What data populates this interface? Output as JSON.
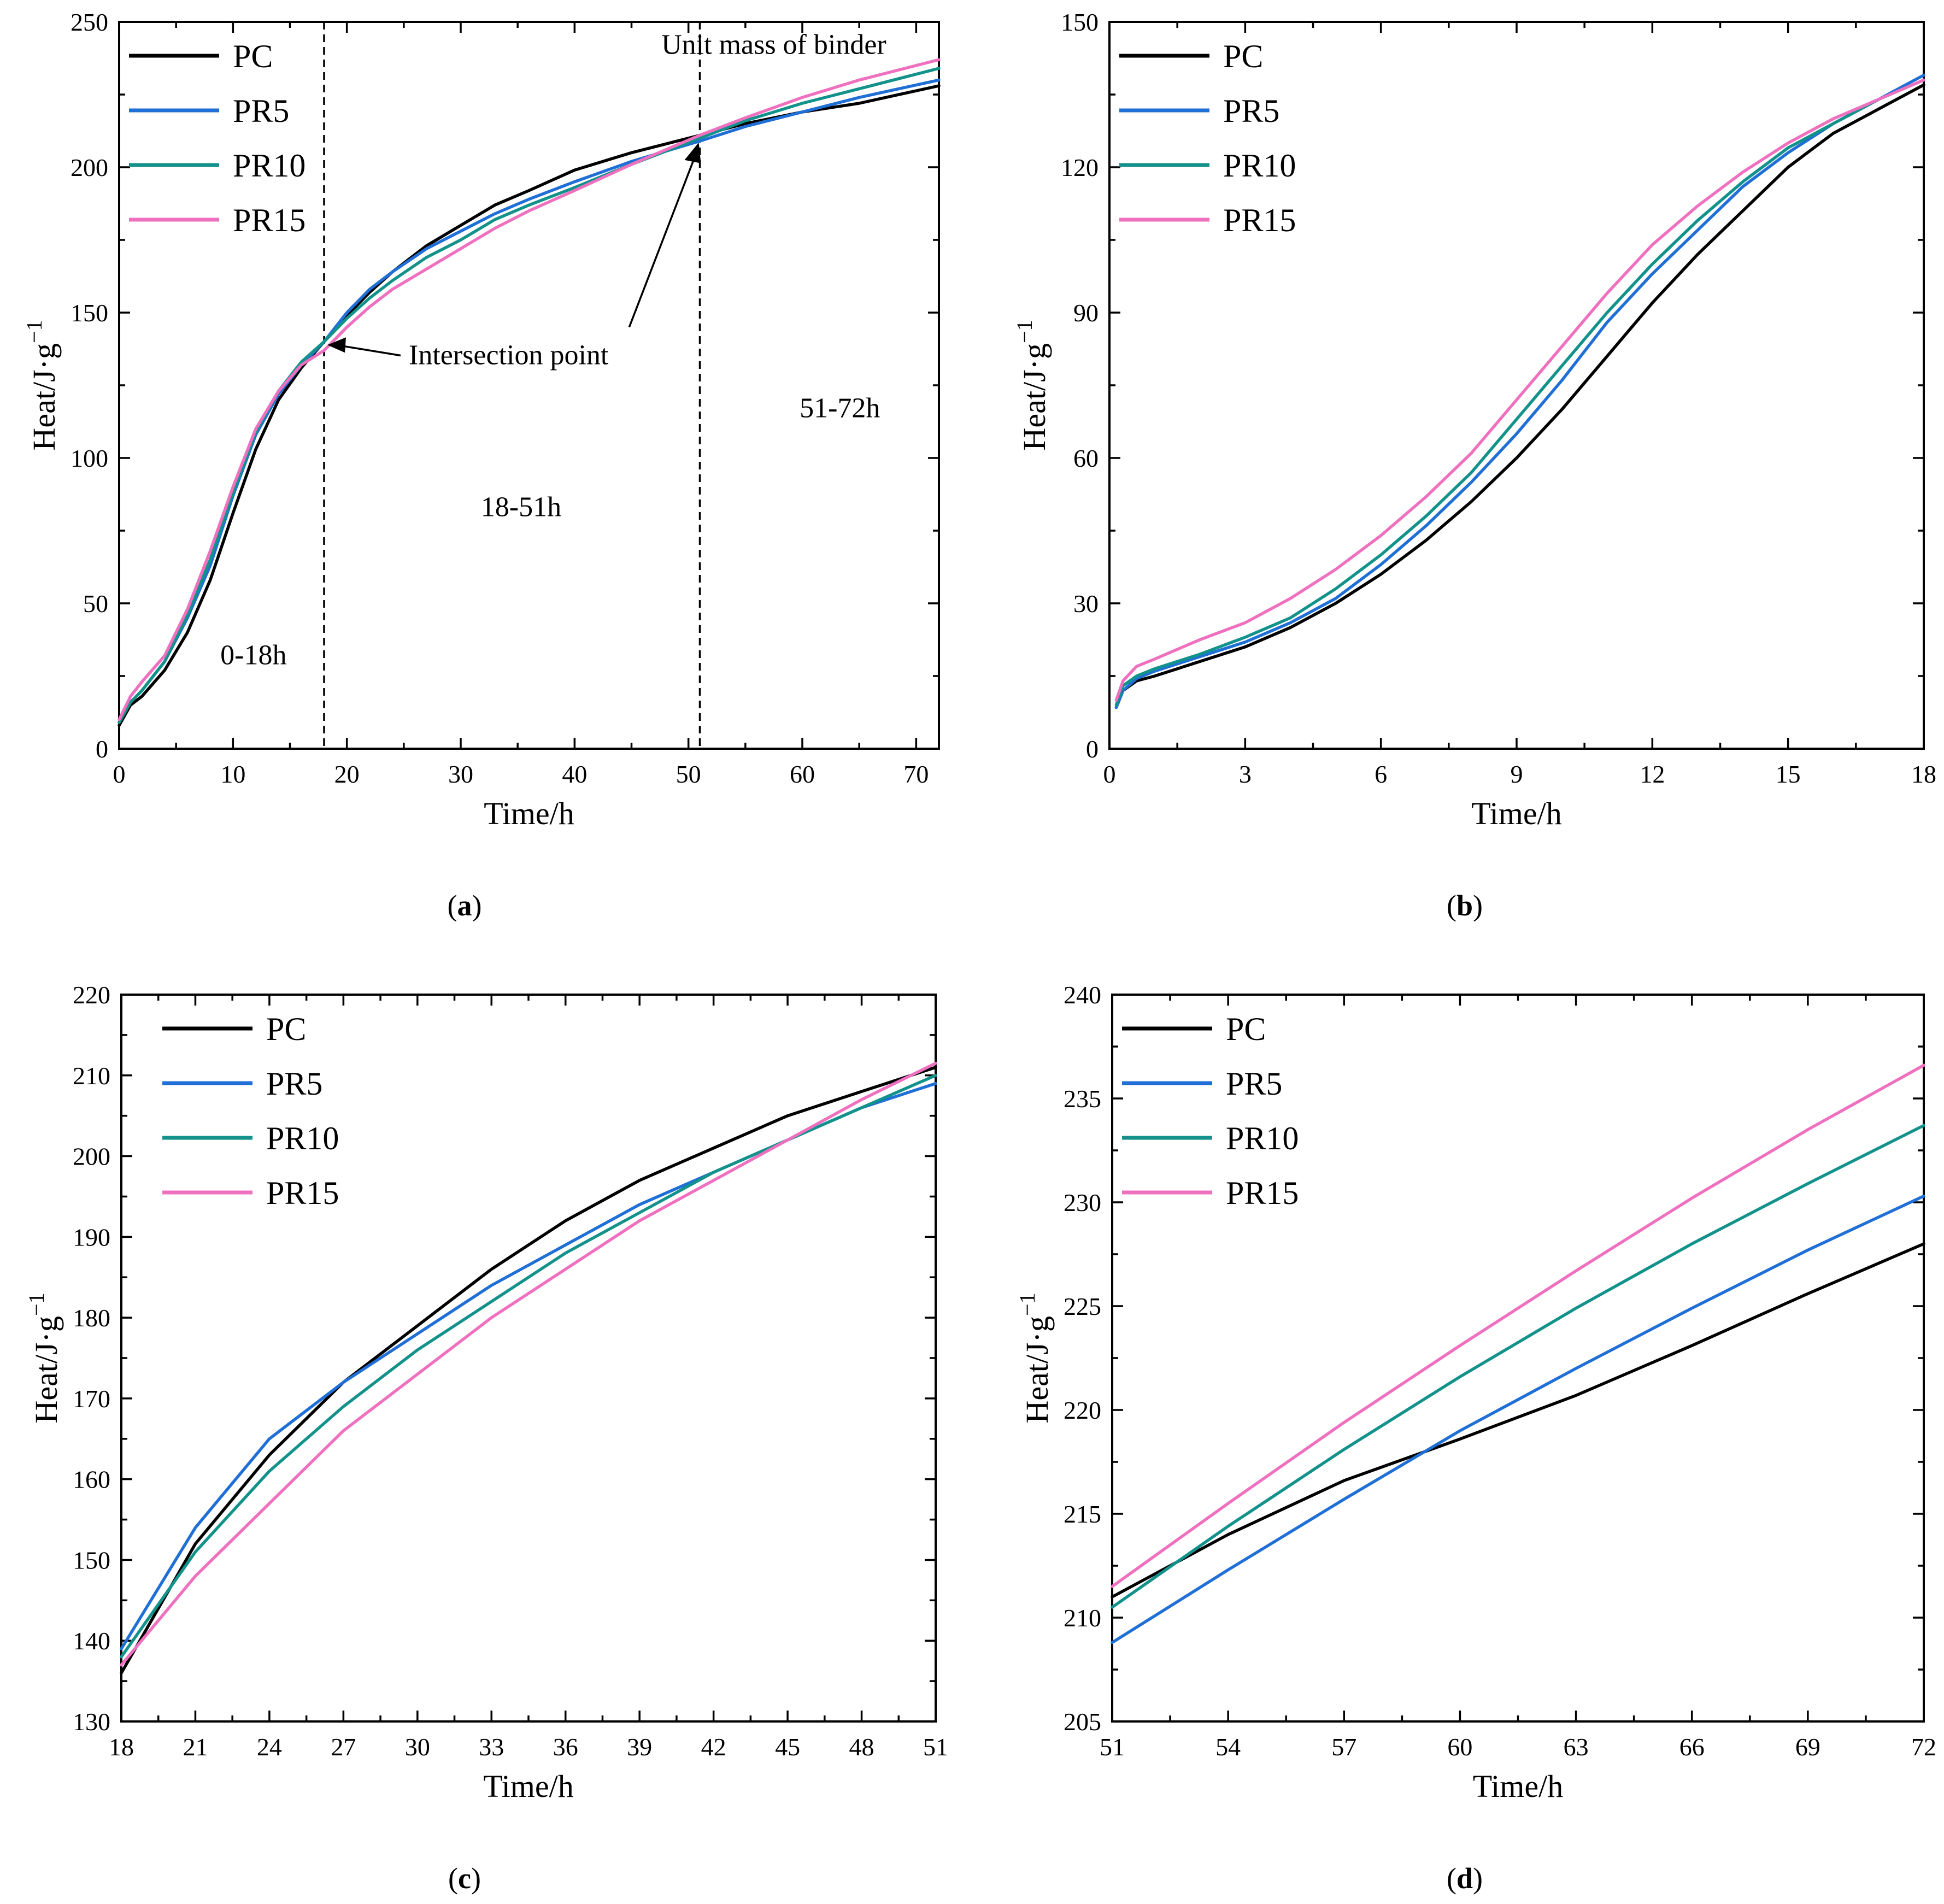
{
  "colors": {
    "PC": "#000000",
    "PR5": "#1f6fd6",
    "PR10": "#12928a",
    "PR15": "#f070c0"
  },
  "chart_data": [
    {
      "panel": "(a)",
      "panel_letter": "a",
      "type": "line",
      "xlabel": "Time/h",
      "ylabel_main": "Heat/J·g",
      "ylabel_sup": "−1",
      "xlim": [
        0,
        72
      ],
      "ylim": [
        0,
        250
      ],
      "xticks": [
        0,
        10,
        20,
        30,
        40,
        50,
        60,
        70
      ],
      "yticks": [
        0,
        50,
        100,
        150,
        200,
        250
      ],
      "legend_position": "top-left",
      "annotations": {
        "intersection": "Intersection point",
        "unit_mass": "Unit mass of binder",
        "region1": "0-18h",
        "region2": "18-51h",
        "region3": "51-72h"
      },
      "vlines": [
        18,
        51
      ],
      "series": [
        {
          "name": "PC",
          "x": [
            0,
            1,
            2,
            4,
            6,
            8,
            10,
            12,
            14,
            16,
            18,
            20,
            22,
            24,
            27,
            30,
            33,
            36,
            40,
            45,
            51,
            55,
            60,
            65,
            72
          ],
          "y": [
            8,
            15,
            18,
            27,
            40,
            58,
            81,
            103,
            120,
            131,
            140,
            149,
            157,
            164,
            173,
            180,
            187,
            192,
            199,
            205,
            211,
            215,
            219,
            222,
            228
          ]
        },
        {
          "name": "PR5",
          "x": [
            0,
            1,
            2,
            4,
            6,
            8,
            10,
            12,
            14,
            16,
            18,
            20,
            22,
            24,
            27,
            30,
            33,
            36,
            40,
            45,
            51,
            55,
            60,
            65,
            72
          ],
          "y": [
            9,
            16,
            20,
            30,
            45,
            63,
            87,
            108,
            122,
            132,
            140,
            150,
            158,
            164,
            172,
            178,
            184,
            189,
            195,
            202,
            209,
            214,
            219,
            224,
            230
          ]
        },
        {
          "name": "PR10",
          "x": [
            0,
            1,
            2,
            4,
            6,
            8,
            10,
            12,
            14,
            16,
            18,
            20,
            22,
            24,
            27,
            30,
            33,
            36,
            40,
            45,
            51,
            55,
            60,
            65,
            72
          ],
          "y": [
            9,
            16,
            20,
            30,
            46,
            65,
            88,
            109,
            123,
            133,
            140,
            148,
            155,
            161,
            169,
            175,
            182,
            187,
            193,
            201,
            210,
            216,
            222,
            227,
            234
          ]
        },
        {
          "name": "PR15",
          "x": [
            0,
            1,
            2,
            4,
            6,
            8,
            10,
            12,
            14,
            16,
            18,
            20,
            22,
            24,
            27,
            30,
            33,
            36,
            40,
            45,
            51,
            55,
            60,
            65,
            72
          ],
          "y": [
            10,
            18,
            23,
            32,
            48,
            68,
            90,
            110,
            123,
            132,
            137,
            145,
            152,
            158,
            165,
            172,
            179,
            185,
            192,
            201,
            211,
            217,
            224,
            230,
            237
          ]
        }
      ]
    },
    {
      "panel": "(b)",
      "panel_letter": "b",
      "type": "line",
      "xlabel": "Time/h",
      "ylabel_main": "Heat/J·g",
      "ylabel_sup": "−1",
      "xlim": [
        0,
        18
      ],
      "ylim": [
        0,
        150
      ],
      "xticks": [
        0,
        3,
        6,
        9,
        12,
        15,
        18
      ],
      "yticks": [
        0,
        30,
        60,
        90,
        120,
        150
      ],
      "legend_position": "top-left",
      "series": [
        {
          "name": "PC",
          "x": [
            0.15,
            0.3,
            0.6,
            1,
            1.5,
            2,
            3,
            4,
            5,
            6,
            7,
            8,
            9,
            10,
            11,
            12,
            13,
            14,
            15,
            16,
            17,
            18
          ],
          "y": [
            8.5,
            12,
            14,
            15,
            16.5,
            18,
            21,
            25,
            30,
            36,
            43,
            51,
            60,
            70,
            81,
            92,
            102,
            111,
            120,
            127,
            132,
            137
          ]
        },
        {
          "name": "PR5",
          "x": [
            0.15,
            0.3,
            0.6,
            1,
            1.5,
            2,
            3,
            4,
            5,
            6,
            7,
            8,
            9,
            10,
            11,
            12,
            13,
            14,
            15,
            16,
            17,
            18
          ],
          "y": [
            8.5,
            12,
            14.5,
            16,
            17.5,
            19,
            22,
            26,
            31,
            38,
            46,
            55,
            65,
            76,
            88,
            98,
            107,
            116,
            123,
            129,
            134,
            139
          ]
        },
        {
          "name": "PR10",
          "x": [
            0.15,
            0.3,
            0.6,
            1,
            1.5,
            2,
            3,
            4,
            5,
            6,
            7,
            8,
            9,
            10,
            11,
            12,
            13,
            14,
            15,
            16,
            17,
            18
          ],
          "y": [
            9,
            13,
            15,
            16.5,
            18,
            19.5,
            23,
            27,
            33,
            40,
            48,
            57,
            68,
            79,
            90,
            100,
            109,
            117,
            124,
            129,
            134,
            138
          ]
        },
        {
          "name": "PR15",
          "x": [
            0.15,
            0.3,
            0.6,
            1,
            1.5,
            2,
            3,
            4,
            5,
            6,
            7,
            8,
            9,
            10,
            11,
            12,
            13,
            14,
            15,
            16,
            17,
            18
          ],
          "y": [
            10,
            14,
            17,
            18.5,
            20.5,
            22.5,
            26,
            31,
            37,
            44,
            52,
            61,
            72,
            83,
            94,
            104,
            112,
            119,
            125,
            130,
            134,
            138
          ]
        }
      ]
    },
    {
      "panel": "(c)",
      "panel_letter": "c",
      "type": "line",
      "xlabel": "Time/h",
      "ylabel_main": "Heat/J·g",
      "ylabel_sup": "−1",
      "xlim": [
        18,
        51
      ],
      "ylim": [
        130,
        220
      ],
      "xticks": [
        18,
        21,
        24,
        27,
        30,
        33,
        36,
        39,
        42,
        45,
        48,
        51
      ],
      "yticks": [
        130,
        140,
        150,
        160,
        170,
        180,
        190,
        200,
        210,
        220
      ],
      "legend_position": "top-left",
      "series": [
        {
          "name": "PC",
          "x": [
            18,
            21,
            24,
            27,
            30,
            33,
            36,
            39,
            42,
            45,
            48,
            51
          ],
          "y": [
            136,
            152,
            163,
            172,
            179,
            186,
            192,
            197,
            201,
            205,
            208,
            211
          ]
        },
        {
          "name": "PR5",
          "x": [
            18,
            21,
            24,
            27,
            30,
            33,
            36,
            39,
            42,
            45,
            48,
            51
          ],
          "y": [
            139,
            154,
            165,
            172,
            178,
            184,
            189,
            194,
            198,
            202,
            206,
            209
          ]
        },
        {
          "name": "PR10",
          "x": [
            18,
            21,
            24,
            27,
            30,
            33,
            36,
            39,
            42,
            45,
            48,
            51
          ],
          "y": [
            138,
            151,
            161,
            169,
            176,
            182,
            188,
            193,
            198,
            202,
            206,
            210
          ]
        },
        {
          "name": "PR15",
          "x": [
            18,
            21,
            24,
            27,
            30,
            33,
            36,
            39,
            42,
            45,
            48,
            51
          ],
          "y": [
            137,
            148,
            157,
            166,
            173,
            180,
            186,
            192,
            197,
            202,
            207,
            211.5
          ]
        }
      ]
    },
    {
      "panel": "(d)",
      "panel_letter": "d",
      "type": "line",
      "xlabel": "Time/h",
      "ylabel_main": "Heat/J·g",
      "ylabel_sup": "−1",
      "xlim": [
        51,
        72
      ],
      "ylim": [
        205,
        240
      ],
      "xticks": [
        51,
        54,
        57,
        60,
        63,
        66,
        69,
        72
      ],
      "yticks": [
        205,
        210,
        215,
        220,
        225,
        230,
        235,
        240
      ],
      "legend_position": "top-left",
      "series": [
        {
          "name": "PC",
          "x": [
            51,
            54,
            57,
            60,
            63,
            66,
            69,
            72
          ],
          "y": [
            211,
            214,
            216.6,
            218.6,
            220.7,
            223.1,
            225.6,
            228
          ]
        },
        {
          "name": "PR5",
          "x": [
            51,
            54,
            57,
            60,
            63,
            66,
            69,
            72
          ],
          "y": [
            208.8,
            212.3,
            215.7,
            219,
            222,
            224.9,
            227.7,
            230.3
          ]
        },
        {
          "name": "PR10",
          "x": [
            51,
            54,
            57,
            60,
            63,
            66,
            69,
            72
          ],
          "y": [
            210.5,
            214.4,
            218.1,
            221.6,
            224.9,
            228,
            230.9,
            233.7
          ]
        },
        {
          "name": "PR15",
          "x": [
            51,
            54,
            57,
            60,
            63,
            66,
            69,
            72
          ],
          "y": [
            211.5,
            215.5,
            219.4,
            223.1,
            226.7,
            230.2,
            233.5,
            236.6
          ]
        }
      ]
    }
  ]
}
